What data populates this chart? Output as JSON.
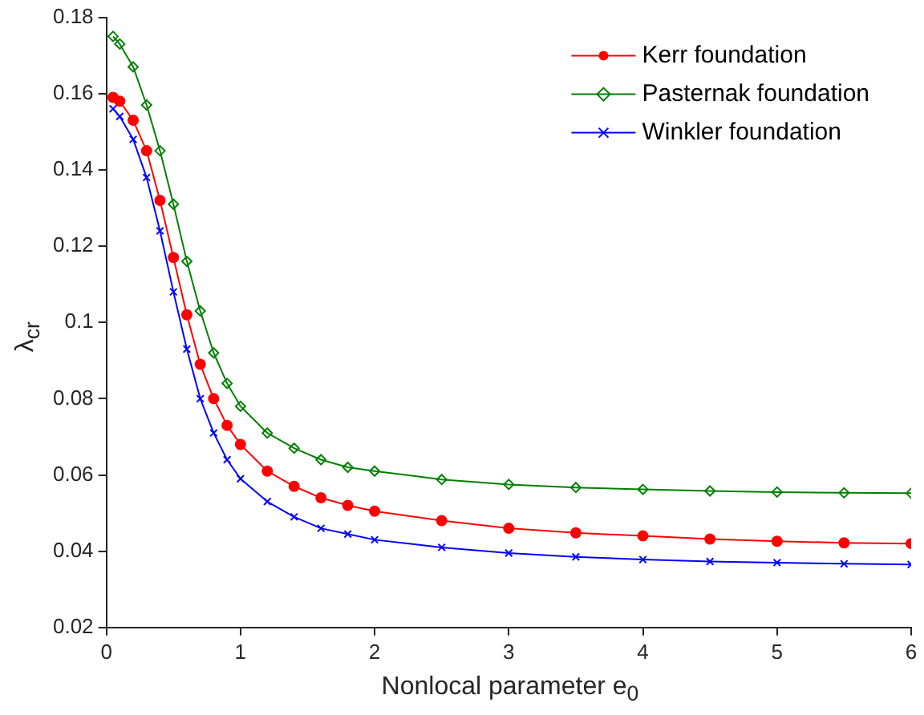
{
  "chart_data": {
    "type": "line",
    "xlabel": "Nonlocal parameter e$_{0}$",
    "ylabel": "λ$_{cr}$",
    "xlim": [
      0,
      6
    ],
    "xticks": [
      0,
      1,
      2,
      3,
      4,
      5,
      6
    ],
    "ylim": [
      0.02,
      0.18
    ],
    "yticks": [
      0.02,
      0.04,
      0.06,
      0.08,
      0.1,
      0.12,
      0.14,
      0.16,
      0.18
    ],
    "grid": false,
    "legend": "top right",
    "series": [
      {
        "name": "Kerr foundation",
        "color": "#ff0000",
        "marker": "circle",
        "x": [
          0.05,
          0.1,
          0.2,
          0.3,
          0.4,
          0.5,
          0.6,
          0.7,
          0.8,
          0.9,
          1.0,
          1.2,
          1.4,
          1.6,
          1.8,
          2.0,
          2.5,
          3,
          3.5,
          4,
          4.5,
          5,
          5.5,
          6
        ],
        "values": [
          0.159,
          0.158,
          0.153,
          0.145,
          0.132,
          0.117,
          0.102,
          0.089,
          0.08,
          0.073,
          0.068,
          0.061,
          0.057,
          0.054,
          0.052,
          0.0505,
          0.048,
          0.046,
          0.0448,
          0.044,
          0.0432,
          0.0426,
          0.0422,
          0.042
        ]
      },
      {
        "name": "Pasternak foundation",
        "color": "#008000",
        "marker": "diamond",
        "x": [
          0.05,
          0.1,
          0.2,
          0.3,
          0.4,
          0.5,
          0.6,
          0.7,
          0.8,
          0.9,
          1.0,
          1.2,
          1.4,
          1.6,
          1.8,
          2.0,
          2.5,
          3,
          3.5,
          4,
          4.5,
          5,
          5.5,
          6
        ],
        "values": [
          0.175,
          0.173,
          0.167,
          0.157,
          0.145,
          0.131,
          0.116,
          0.103,
          0.092,
          0.084,
          0.078,
          0.071,
          0.067,
          0.064,
          0.062,
          0.061,
          0.0588,
          0.0575,
          0.0567,
          0.0562,
          0.0558,
          0.0555,
          0.0553,
          0.0552
        ]
      },
      {
        "name": "Winkler foundation",
        "color": "#0000ff",
        "marker": "cross",
        "x": [
          0.05,
          0.1,
          0.2,
          0.3,
          0.4,
          0.5,
          0.6,
          0.7,
          0.8,
          0.9,
          1.0,
          1.2,
          1.4,
          1.6,
          1.8,
          2.0,
          2.5,
          3,
          3.5,
          4,
          4.5,
          5,
          5.5,
          6
        ],
        "values": [
          0.156,
          0.154,
          0.148,
          0.138,
          0.124,
          0.108,
          0.093,
          0.08,
          0.071,
          0.064,
          0.059,
          0.053,
          0.049,
          0.046,
          0.0445,
          0.043,
          0.041,
          0.0395,
          0.0385,
          0.0378,
          0.0373,
          0.037,
          0.0367,
          0.0365
        ]
      }
    ]
  }
}
